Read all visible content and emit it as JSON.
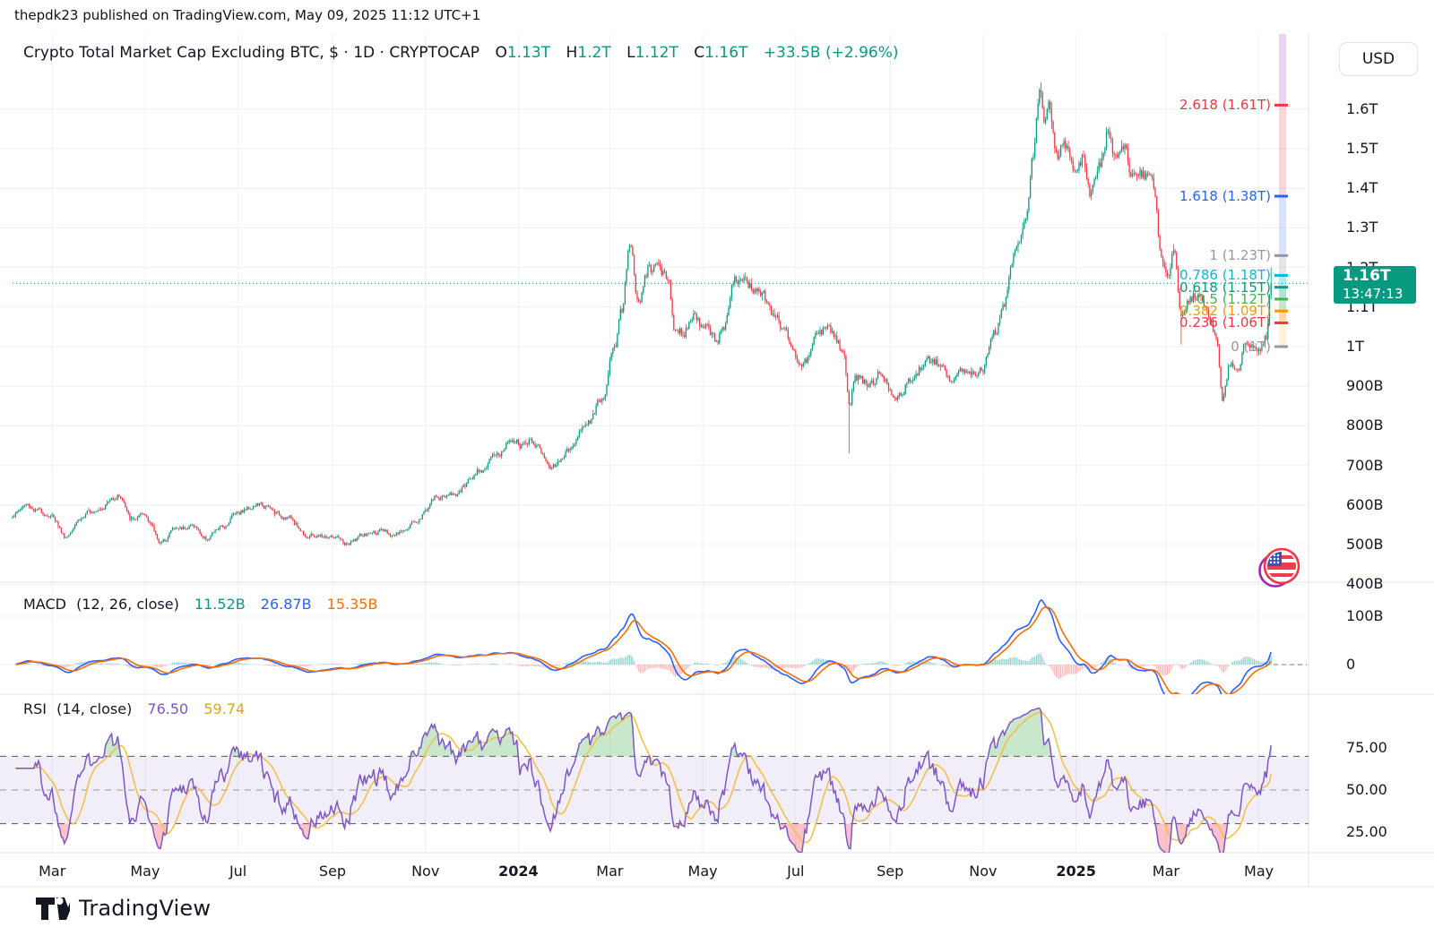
{
  "header": {
    "text": "thepdk23 published on TradingView.com, May 09, 2025 11:12 UTC+1"
  },
  "main": {
    "title": "Crypto Total Market Cap Excluding BTC, $ · 1D · CRYPTOCAP",
    "ohlc": {
      "o_label": "O",
      "o": "1.13T",
      "h_label": "H",
      "h": "1.2T",
      "l_label": "L",
      "l": "1.12T",
      "c_label": "C",
      "c": "1.16T",
      "change": "+33.5B (+2.96%)"
    }
  },
  "macd": {
    "label": "MACD",
    "params": "(12, 26, close)",
    "hist_value": "11.52B",
    "macd_value": "26.87B",
    "signal_value": "15.35B"
  },
  "rsi": {
    "label": "RSI",
    "params": "(14, close)",
    "value": "76.50",
    "ma_value": "59.74"
  },
  "price_tag": {
    "price": "1.16T",
    "countdown": "13:47:13"
  },
  "axis": {
    "currency": "USD",
    "price_labels": [
      {
        "label": "1.6T",
        "price": 1600
      },
      {
        "label": "1.5T",
        "price": 1500
      },
      {
        "label": "1.4T",
        "price": 1400
      },
      {
        "label": "1.3T",
        "price": 1300
      },
      {
        "label": "1.2T",
        "price": 1200
      },
      {
        "label": "1.1T",
        "price": 1100
      },
      {
        "label": "1T",
        "price": 1000
      },
      {
        "label": "900B",
        "price": 900
      },
      {
        "label": "800B",
        "price": 800
      },
      {
        "label": "700B",
        "price": 700
      },
      {
        "label": "600B",
        "price": 600
      },
      {
        "label": "500B",
        "price": 500
      },
      {
        "label": "400B",
        "price": 400
      }
    ],
    "macd_labels": [
      {
        "label": "100B",
        "value": 100
      },
      {
        "label": "0",
        "value": 0
      }
    ],
    "rsi_labels": [
      {
        "label": "75.00",
        "value": 75
      },
      {
        "label": "50.00",
        "value": 50
      },
      {
        "label": "25.00",
        "value": 25
      }
    ]
  },
  "time_axis": {
    "ticks": [
      {
        "label": "Mar",
        "date": "2023-03-01",
        "bold": false
      },
      {
        "label": "May",
        "date": "2023-05-01",
        "bold": false
      },
      {
        "label": "Jul",
        "date": "2023-07-01",
        "bold": false
      },
      {
        "label": "Sep",
        "date": "2023-09-01",
        "bold": false
      },
      {
        "label": "Nov",
        "date": "2023-11-01",
        "bold": false
      },
      {
        "label": "2024",
        "date": "2024-01-01",
        "bold": true
      },
      {
        "label": "Mar",
        "date": "2024-03-01",
        "bold": false
      },
      {
        "label": "May",
        "date": "2024-05-01",
        "bold": false
      },
      {
        "label": "Jul",
        "date": "2024-07-01",
        "bold": false
      },
      {
        "label": "Sep",
        "date": "2024-09-01",
        "bold": false
      },
      {
        "label": "Nov",
        "date": "2024-11-01",
        "bold": false
      },
      {
        "label": "2025",
        "date": "2025-01-01",
        "bold": true
      },
      {
        "label": "Mar",
        "date": "2025-03-01",
        "bold": false
      },
      {
        "label": "May",
        "date": "2025-05-01",
        "bold": false
      }
    ]
  },
  "fib_levels": [
    {
      "text": "2.618 (1.61T)",
      "level": 2.618,
      "price": 1610,
      "color": "#f23645",
      "band": "rgba(156,39,176,0.20)"
    },
    {
      "text": "1.618 (1.38T)",
      "level": 1.618,
      "price": 1380,
      "color": "#2962ff",
      "band": "rgba(242,54,69,0.20)"
    },
    {
      "text": "1 (1.23T)",
      "level": 1,
      "price": 1230,
      "color": "#9598a1",
      "band": "rgba(41,98,255,0.18)"
    },
    {
      "text": "0.786 (1.18T)",
      "level": 0.786,
      "price": 1180,
      "color": "#00bcd4",
      "band": "rgba(149,152,161,0.25)"
    },
    {
      "text": "0.618 (1.15T)",
      "level": 0.618,
      "price": 1150,
      "color": "#089981",
      "band": "rgba(0,188,212,0.30)"
    },
    {
      "text": "0.5 (1.12T)",
      "level": 0.5,
      "price": 1120,
      "color": "#4caf50",
      "band": "rgba(8,153,129,0.30)"
    },
    {
      "text": "0.382 (1.09T)",
      "level": 0.382,
      "price": 1090,
      "color": "#ff9800",
      "band": "rgba(76,175,80,0.30)"
    },
    {
      "text": "0.236 (1.06T)",
      "level": 0.236,
      "price": 1060,
      "color": "#f23645",
      "band": "rgba(255,152,0,0.35)"
    },
    {
      "text": "0 (1T)",
      "level": 0,
      "price": 1000,
      "color": "#9598a1",
      "band": "rgba(255,152,0,0.14)"
    }
  ],
  "logo": {
    "text": "TradingView"
  },
  "colors": {
    "up": "#089981",
    "down": "#f23645",
    "macd_line": "#2962ff",
    "signal_line": "#ff6d00",
    "hist_pos": "rgba(38,166,154,0.55)",
    "hist_neg": "rgba(239,83,80,0.45)",
    "rsi_line": "#7e57c2",
    "rsi_ma_line": "#f2c14a",
    "rsi_band": "rgba(126,87,194,0.10)",
    "grid": "#eef0f3",
    "pane_border": "#e0e3eb",
    "last_price_line": "#089981"
  },
  "chart_data": {
    "type": "candlestick",
    "title": "Crypto Total Market Cap Excluding BTC (CRYPTOCAP, 1D, USD)",
    "unit": "billions_usd",
    "ylim_B": [
      400,
      1700
    ],
    "start_date": "2023-02-03",
    "end_date": "2025-05-09",
    "last_ohlc_B": {
      "open": 1130,
      "high": 1200,
      "low": 1120,
      "close": 1160
    },
    "price_anchors": [
      [
        "2023-02-03",
        575
      ],
      [
        "2023-02-12",
        600
      ],
      [
        "2023-02-20",
        585
      ],
      [
        "2023-03-01",
        572
      ],
      [
        "2023-03-10",
        520
      ],
      [
        "2023-03-18",
        565
      ],
      [
        "2023-04-01",
        595
      ],
      [
        "2023-04-14",
        625
      ],
      [
        "2023-04-22",
        562
      ],
      [
        "2023-05-01",
        572
      ],
      [
        "2023-05-12",
        505
      ],
      [
        "2023-05-20",
        540
      ],
      [
        "2023-06-01",
        548
      ],
      [
        "2023-06-10",
        515
      ],
      [
        "2023-06-20",
        542
      ],
      [
        "2023-07-01",
        585
      ],
      [
        "2023-07-14",
        600
      ],
      [
        "2023-08-01",
        572
      ],
      [
        "2023-08-17",
        522
      ],
      [
        "2023-09-01",
        518
      ],
      [
        "2023-09-11",
        500
      ],
      [
        "2023-09-20",
        522
      ],
      [
        "2023-10-01",
        532
      ],
      [
        "2023-10-13",
        525
      ],
      [
        "2023-10-25",
        560
      ],
      [
        "2023-11-09",
        618
      ],
      [
        "2023-11-20",
        628
      ],
      [
        "2023-12-08",
        692
      ],
      [
        "2023-12-20",
        732
      ],
      [
        "2023-12-28",
        772
      ],
      [
        "2024-01-03",
        748
      ],
      [
        "2024-01-10",
        762
      ],
      [
        "2024-01-23",
        697
      ],
      [
        "2024-02-01",
        732
      ],
      [
        "2024-02-14",
        802
      ],
      [
        "2024-02-26",
        872
      ],
      [
        "2024-03-04",
        1005
      ],
      [
        "2024-03-09",
        1090
      ],
      [
        "2024-03-14",
        1258
      ],
      [
        "2024-03-20",
        1105
      ],
      [
        "2024-03-27",
        1198
      ],
      [
        "2024-04-08",
        1178
      ],
      [
        "2024-04-13",
        1048
      ],
      [
        "2024-04-18",
        1040
      ],
      [
        "2024-04-25",
        1082
      ],
      [
        "2024-05-01",
        1052
      ],
      [
        "2024-05-10",
        1012
      ],
      [
        "2024-05-15",
        1052
      ],
      [
        "2024-05-21",
        1172
      ],
      [
        "2024-05-27",
        1158
      ],
      [
        "2024-06-06",
        1148
      ],
      [
        "2024-06-18",
        1078
      ],
      [
        "2024-06-24",
        1032
      ],
      [
        "2024-07-05",
        952
      ],
      [
        "2024-07-17",
        1032
      ],
      [
        "2024-07-22",
        1058
      ],
      [
        "2024-07-27",
        1018
      ],
      [
        "2024-08-01",
        988
      ],
      [
        "2024-08-05",
        852
      ],
      [
        "2024-08-09",
        922
      ],
      [
        "2024-08-20",
        902
      ],
      [
        "2024-08-25",
        938
      ],
      [
        "2024-09-06",
        872
      ],
      [
        "2024-09-14",
        912
      ],
      [
        "2024-09-24",
        958
      ],
      [
        "2024-09-30",
        962
      ],
      [
        "2024-10-10",
        922
      ],
      [
        "2024-10-17",
        945
      ],
      [
        "2024-10-23",
        932
      ],
      [
        "2024-11-01",
        952
      ],
      [
        "2024-11-08",
        1032
      ],
      [
        "2024-11-14",
        1092
      ],
      [
        "2024-11-22",
        1232
      ],
      [
        "2024-11-29",
        1302
      ],
      [
        "2024-12-04",
        1482
      ],
      [
        "2024-12-08",
        1642
      ],
      [
        "2024-12-11",
        1562
      ],
      [
        "2024-12-14",
        1608
      ],
      [
        "2024-12-19",
        1482
      ],
      [
        "2024-12-24",
        1528
      ],
      [
        "2024-12-30",
        1452
      ],
      [
        "2025-01-06",
        1482
      ],
      [
        "2025-01-10",
        1392
      ],
      [
        "2025-01-16",
        1452
      ],
      [
        "2025-01-22",
        1542
      ],
      [
        "2025-01-27",
        1472
      ],
      [
        "2025-02-01",
        1492
      ],
      [
        "2025-02-08",
        1422
      ],
      [
        "2025-02-14",
        1432
      ],
      [
        "2025-02-21",
        1398
      ],
      [
        "2025-02-26",
        1222
      ],
      [
        "2025-03-03",
        1182
      ],
      [
        "2025-03-06",
        1232
      ],
      [
        "2025-03-11",
        1082
      ],
      [
        "2025-03-17",
        1122
      ],
      [
        "2025-03-24",
        1142
      ],
      [
        "2025-03-29",
        1072
      ],
      [
        "2025-04-03",
        1032
      ],
      [
        "2025-04-07",
        872
      ],
      [
        "2025-04-12",
        952
      ],
      [
        "2025-04-17",
        940
      ],
      [
        "2025-04-23",
        1012
      ],
      [
        "2025-04-28",
        992
      ],
      [
        "2025-05-02",
        986
      ],
      [
        "2025-05-06",
        1022
      ],
      [
        "2025-05-08",
        1128
      ],
      [
        "2025-05-09",
        1160
      ]
    ],
    "wick_overrides": {
      "2024-08-05": {
        "low": 730
      },
      "2024-12-09": {
        "high": 1668
      },
      "2025-03-11": {
        "low": 1005
      }
    },
    "indicators": {
      "macd": {
        "fast": 12,
        "slow": 26,
        "signal": 9,
        "current": {
          "hist_B": 11.52,
          "macd_B": 26.87,
          "signal_B": 15.35
        }
      },
      "rsi": {
        "length": 14,
        "ma_length": 14,
        "upper_band": 70,
        "middle_band": 50,
        "lower_band": 30,
        "current": {
          "rsi": 76.5,
          "ma": 59.74
        }
      }
    }
  }
}
